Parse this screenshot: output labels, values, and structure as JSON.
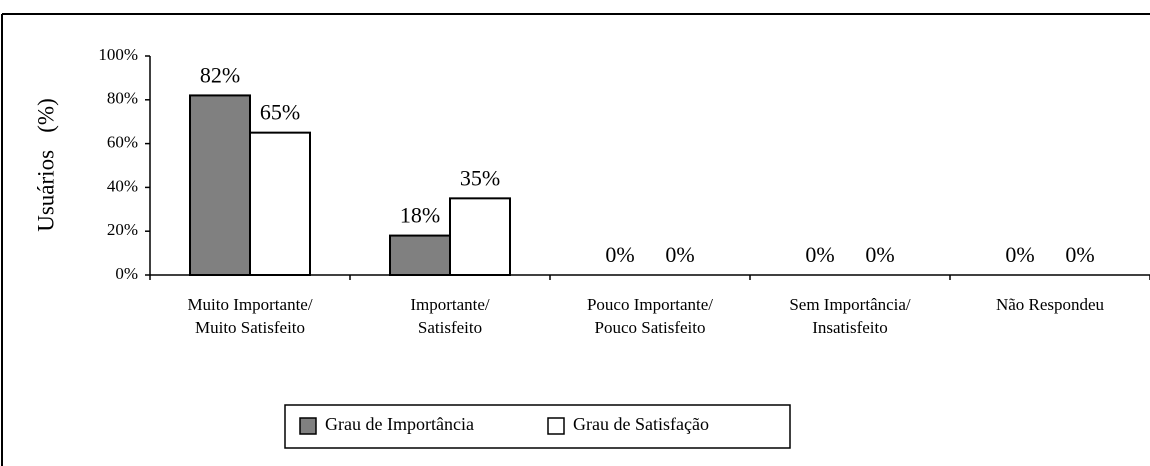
{
  "chart_data": {
    "type": "bar",
    "y_label": "Usuários   (%)",
    "categories": [
      "Muito Importante/\nMuito Satisfeito",
      "Importante/\nSatisfeito",
      "Pouco Importante/\nPouco Satisfeito",
      "Sem Importância/\nInsatisfeito",
      "Não Respondeu"
    ],
    "series": [
      {
        "name": "Grau de Importância",
        "color": "#808080",
        "values": [
          82,
          18,
          0,
          0,
          0
        ],
        "value_labels": [
          "82%",
          "18%",
          "0%",
          "0%",
          "0%"
        ]
      },
      {
        "name": "Grau de Satisfação",
        "color": "#ffffff",
        "values": [
          65,
          35,
          0,
          0,
          0
        ],
        "value_labels": [
          "65%",
          "35%",
          "0%",
          "0%",
          "0%"
        ]
      }
    ],
    "ylim": [
      0,
      100
    ],
    "yticks": [
      {
        "value": 0,
        "label": "0%"
      },
      {
        "value": 20,
        "label": "20%"
      },
      {
        "value": 40,
        "label": "40%"
      },
      {
        "value": 60,
        "label": "60%"
      },
      {
        "value": 80,
        "label": "80%"
      },
      {
        "value": 100,
        "label": "100%"
      }
    ],
    "legend": "bottom"
  }
}
